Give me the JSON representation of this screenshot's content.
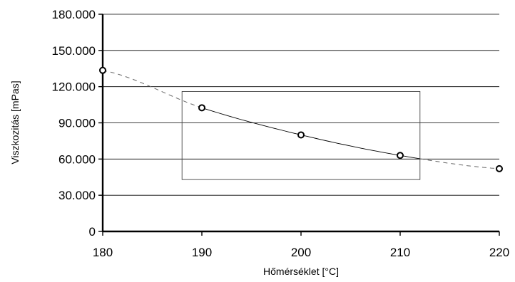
{
  "chart_data": {
    "type": "scatter",
    "xlabel": "Hőmérséklet [°C]",
    "ylabel": "Viszkozitás [mPas]",
    "xlim": [
      180,
      220
    ],
    "ylim": [
      0,
      180000
    ],
    "x_ticks": [
      180,
      190,
      200,
      210,
      220
    ],
    "x_tick_labels": [
      "180",
      "190",
      "200",
      "210",
      "220"
    ],
    "y_ticks": [
      0,
      30000,
      60000,
      90000,
      120000,
      150000,
      180000
    ],
    "y_tick_labels": [
      "0",
      "30.000",
      "60.000",
      "90.000",
      "120.000",
      "150.000",
      "180.000"
    ],
    "grid": "horizontal",
    "series": [
      {
        "x": [
          180,
          190,
          200,
          210,
          220
        ],
        "y": [
          133500,
          102500,
          80000,
          63000,
          52000
        ],
        "marker": "open-circle"
      }
    ],
    "trendline": {
      "solid_range": [
        190,
        212
      ],
      "dashed_ranges": [
        [
          180,
          190
        ],
        [
          212,
          220
        ]
      ]
    },
    "highlight_box": {
      "x": [
        188,
        212
      ],
      "y": [
        43000,
        116000
      ]
    },
    "colors": {
      "axis": "#000000",
      "marker_fill": "#ffffff",
      "line": "#000000",
      "dash": "#666666"
    }
  }
}
